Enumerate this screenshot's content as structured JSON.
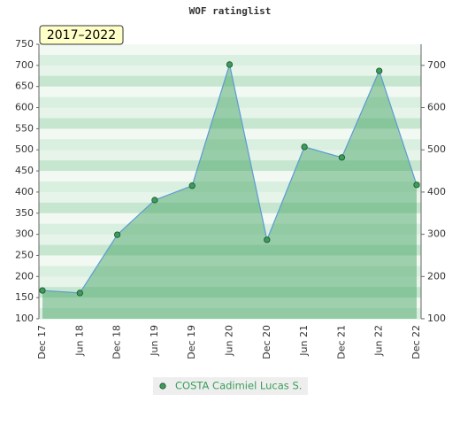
{
  "chart_data": {
    "type": "area",
    "title": "WOF ratinglist",
    "annotation": "2017–2022",
    "categories": [
      "Dec 17",
      "Jun 18",
      "Dec 18",
      "Jun 19",
      "Dec 19",
      "Jun 20",
      "Dec 20",
      "Jun 21",
      "Dec 21",
      "Jun 22",
      "Dec 22"
    ],
    "series": [
      {
        "name": "COSTA Cadimiel Lucas S.",
        "color": "#3a9d5a",
        "values": [
          167,
          161,
          299,
          381,
          415,
          702,
          287,
          507,
          482,
          687,
          417
        ]
      }
    ],
    "ylim": [
      100,
      750
    ],
    "yticks": [
      100,
      150,
      200,
      250,
      300,
      350,
      400,
      450,
      500,
      550,
      600,
      650,
      700,
      750
    ],
    "y2lim": [
      100,
      750
    ],
    "y2ticks": [
      100,
      200,
      300,
      400,
      500,
      600,
      700
    ]
  }
}
